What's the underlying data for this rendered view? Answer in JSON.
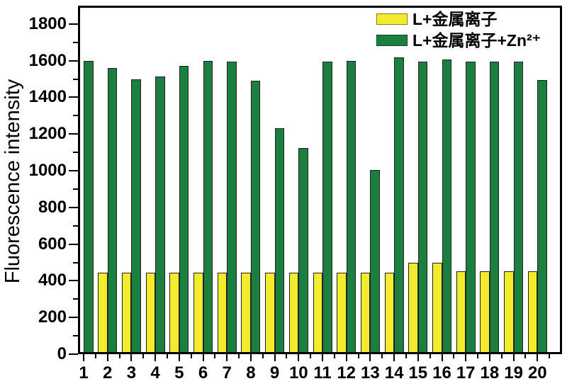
{
  "figure": {
    "background": "#ffffff",
    "axis_color": "#000000"
  },
  "chart_data": {
    "type": "bar",
    "title": "",
    "xlabel": "",
    "ylabel": "Fluorescence intensity",
    "categories": [
      "1",
      "2",
      "3",
      "4",
      "5",
      "6",
      "7",
      "8",
      "9",
      "10",
      "11",
      "12",
      "13",
      "14",
      "15",
      "16",
      "17",
      "18",
      "19",
      "20"
    ],
    "series": [
      {
        "name": "L+金属离子",
        "color": "#f3eb2d",
        "values": [
          0,
          445,
          445,
          445,
          445,
          445,
          445,
          445,
          445,
          445,
          445,
          445,
          445,
          445,
          500,
          500,
          450,
          450,
          450,
          450
        ]
      },
      {
        "name": "L+金属离子+Zn²⁺",
        "color": "#1b7f3f",
        "values": [
          1600,
          1560,
          1500,
          1515,
          1570,
          1600,
          1595,
          1490,
          1230,
          1125,
          1595,
          1600,
          1005,
          1620,
          1595,
          1605,
          1595,
          1595,
          1595,
          1495
        ]
      }
    ],
    "ylim": [
      0,
      1900
    ],
    "y_major_tick_step": 200,
    "y_minor_tick_step": 100,
    "y_major_tick_labels": [
      "0",
      "200",
      "400",
      "600",
      "800",
      "1000",
      "1200",
      "1400",
      "1600",
      "1800"
    ],
    "x_minor_ticks_between_categories": true,
    "grid": false,
    "legend_position": "top-right-inside",
    "bar_border_color": "#222222"
  }
}
